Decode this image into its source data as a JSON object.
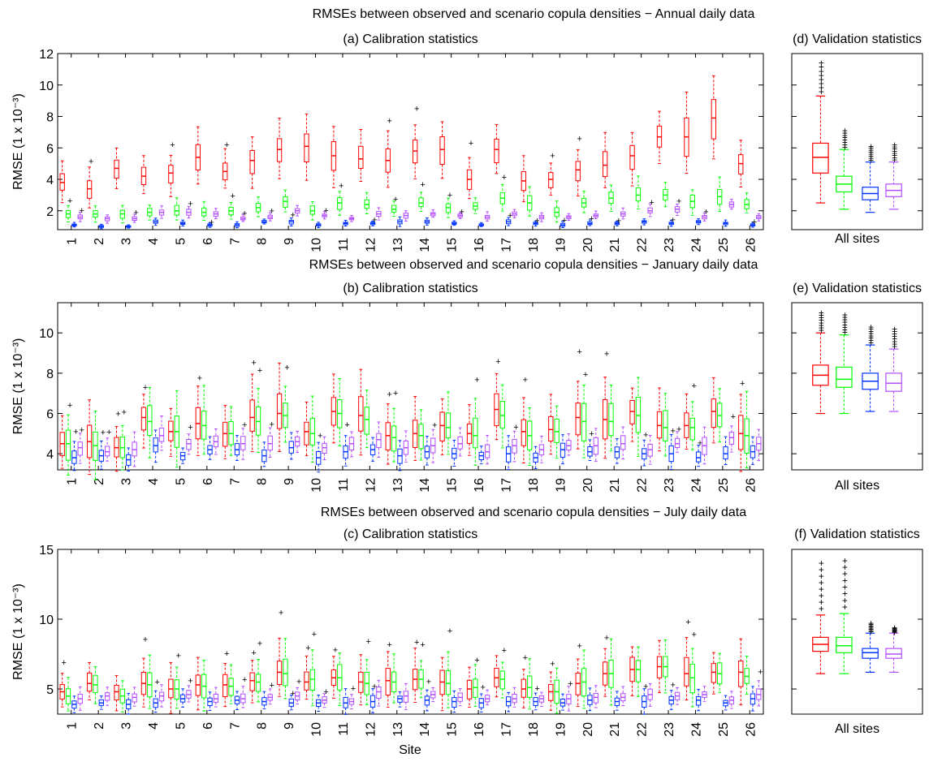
{
  "chart_data": {
    "type": "boxplot",
    "layout_title": "",
    "x_label": "Site",
    "series": [
      {
        "name": "",
        "color": "#ff0000"
      },
      {
        "name": "",
        "color": "#00ff00"
      },
      {
        "name": "",
        "color": "#0033ff"
      },
      {
        "name": "",
        "color": "#b44cff"
      }
    ],
    "outlier_color": "#a0a0a0",
    "sites": [
      "1",
      "2",
      "3",
      "4",
      "5",
      "6",
      "7",
      "8",
      "9",
      "10",
      "11",
      "12",
      "13",
      "14",
      "15",
      "16",
      "17",
      "18",
      "19",
      "20",
      "21",
      "22",
      "23",
      "24",
      "25",
      "26"
    ],
    "validation_category": "All sites",
    "panels": [
      {
        "title": "RMSEs between observed and scenario copula densities − Annual daily data",
        "calib_title": "(a) Calibration statistics",
        "valid_title": "(d) Validation statistics",
        "ylabel": "RMSE (1 x 10⁻³)",
        "ylim": [
          0.8,
          12
        ],
        "yticks": [
          2,
          4,
          6,
          8,
          10,
          12
        ],
        "medians": {
          "red": [
            3.8,
            3.4,
            4.7,
            4.2,
            4.4,
            5.4,
            4.5,
            5.2,
            5.9,
            6.1,
            5.5,
            5.3,
            5.2,
            5.8,
            5.9,
            4.0,
            5.9,
            3.9,
            4.0,
            4.6,
            4.9,
            5.5,
            6.7,
            6.7,
            7.9,
            5.0
          ],
          "green": [
            1.8,
            1.8,
            1.8,
            1.9,
            2.0,
            1.9,
            2.0,
            2.2,
            2.6,
            2.0,
            2.5,
            2.4,
            2.1,
            2.5,
            2.2,
            2.3,
            2.8,
            2.5,
            1.9,
            2.5,
            2.8,
            3.0,
            3.0,
            2.6,
            2.9,
            2.4
          ],
          "blue": [
            1.1,
            1.0,
            1.0,
            1.3,
            1.2,
            1.1,
            1.1,
            1.3,
            1.3,
            1.1,
            1.2,
            1.2,
            1.3,
            1.3,
            1.2,
            1.1,
            1.3,
            1.2,
            1.1,
            1.2,
            1.2,
            1.3,
            1.2,
            1.3,
            1.2,
            1.1
          ],
          "purple": [
            1.6,
            1.5,
            1.5,
            1.9,
            1.9,
            1.8,
            1.5,
            1.6,
            2.0,
            1.7,
            1.5,
            1.8,
            1.7,
            1.8,
            1.7,
            1.6,
            1.8,
            1.6,
            1.6,
            1.7,
            1.8,
            2.0,
            2.1,
            1.6,
            2.4,
            1.6
          ]
        },
        "validation": {
          "red": {
            "min": 2.5,
            "q1": 4.4,
            "median": 5.4,
            "q3": 6.3,
            "max": 9.3,
            "outliers_max": 11.4
          },
          "green": {
            "min": 2.1,
            "q1": 3.2,
            "median": 3.7,
            "q3": 4.2,
            "max": 5.9,
            "outliers_max": 7.1
          },
          "blue": {
            "min": 1.9,
            "q1": 2.7,
            "median": 3.1,
            "q3": 3.5,
            "max": 5.1,
            "outliers_max": 6.1
          },
          "purple": {
            "min": 2.1,
            "q1": 2.9,
            "median": 3.3,
            "q3": 3.7,
            "max": 5.1,
            "outliers_max": 6.2
          }
        }
      },
      {
        "title": "RMSEs between observed and scenario copula densities − January daily data",
        "calib_title": "(b) Calibration statistics",
        "valid_title": "(e) Validation statistics",
        "ylabel": "RMSE (1 x 10⁻³)",
        "ylim": [
          3.2,
          11.5
        ],
        "yticks": [
          4,
          6,
          8,
          10
        ],
        "medians": {
          "red": [
            4.5,
            4.6,
            4.3,
            5.8,
            5.1,
            5.5,
            5.0,
            5.8,
            6.0,
            5.1,
            6.1,
            5.9,
            4.9,
            5.0,
            5.4,
            5.0,
            6.2,
            5.1,
            5.2,
            5.8,
            5.7,
            6.1,
            5.4,
            5.4,
            6.1,
            5.0
          ],
          "green": [
            4.5,
            4.4,
            4.3,
            5.6,
            5.1,
            5.4,
            5.0,
            5.6,
            5.9,
            5.0,
            6.0,
            5.7,
            4.8,
            4.9,
            5.3,
            4.9,
            5.9,
            4.9,
            5.1,
            5.6,
            5.6,
            5.9,
            5.3,
            5.3,
            5.9,
            4.9
          ],
          "blue": [
            3.8,
            3.9,
            3.7,
            4.4,
            3.9,
            4.2,
            4.2,
            3.9,
            4.3,
            3.8,
            4.1,
            4.2,
            3.9,
            4.1,
            4.0,
            3.9,
            4.0,
            3.8,
            4.2,
            4.1,
            4.1,
            4.0,
            4.0,
            3.8,
            4.0,
            4.1
          ],
          "purple": [
            4.3,
            4.1,
            4.2,
            4.9,
            4.5,
            4.6,
            4.5,
            4.5,
            4.6,
            4.3,
            4.5,
            4.7,
            4.3,
            4.4,
            4.5,
            4.1,
            4.4,
            4.2,
            4.4,
            4.4,
            4.5,
            4.2,
            4.5,
            4.4,
            4.8,
            4.5
          ]
        },
        "validation": {
          "red": {
            "min": 6.0,
            "q1": 7.4,
            "median": 7.9,
            "q3": 8.4,
            "max": 10.0,
            "outliers_max": 11.0
          },
          "green": {
            "min": 6.0,
            "q1": 7.3,
            "median": 7.7,
            "q3": 8.3,
            "max": 9.9,
            "outliers_max": 10.9
          },
          "blue": {
            "min": 6.1,
            "q1": 7.2,
            "median": 7.6,
            "q3": 8.0,
            "max": 9.4,
            "outliers_max": 10.3
          },
          "purple": {
            "min": 6.1,
            "q1": 7.1,
            "median": 7.5,
            "q3": 8.0,
            "max": 9.2,
            "outliers_max": 10.2
          }
        }
      },
      {
        "title": "RMSEs between observed and scenario copula densities − July daily data",
        "calib_title": "(c) Calibration statistics",
        "valid_title": "(f) Validation statistics",
        "ylabel": "RMSE (1 x 10⁻³)",
        "ylim": [
          3.2,
          15
        ],
        "yticks": [
          5,
          10,
          15
        ],
        "medians": {
          "red": [
            4.8,
            5.4,
            4.8,
            5.4,
            5.0,
            5.3,
            5.3,
            5.6,
            6.2,
            5.5,
            5.8,
            5.5,
            5.6,
            5.7,
            5.5,
            5.0,
            5.8,
            5.0,
            4.8,
            5.4,
            6.1,
            6.4,
            6.6,
            6.1,
            6.2,
            6.2
          ],
          "green": [
            4.5,
            5.3,
            4.5,
            5.3,
            5.0,
            5.2,
            5.2,
            5.5,
            6.1,
            5.7,
            5.8,
            5.4,
            5.5,
            5.7,
            5.4,
            5.1,
            5.7,
            5.1,
            4.8,
            5.5,
            6.1,
            6.4,
            6.6,
            5.8,
            6.1,
            5.9
          ],
          "blue": [
            3.9,
            4.0,
            3.9,
            4.0,
            4.3,
            4.1,
            4.2,
            4.1,
            4.0,
            4.0,
            4.0,
            4.1,
            4.3,
            4.2,
            4.1,
            4.0,
            4.1,
            4.1,
            4.0,
            4.2,
            4.1,
            4.1,
            4.2,
            4.2,
            4.0,
            4.3
          ],
          "purple": [
            4.3,
            4.5,
            4.4,
            4.5,
            4.6,
            4.3,
            4.3,
            4.4,
            4.5,
            4.2,
            4.1,
            4.8,
            4.5,
            4.6,
            4.4,
            4.3,
            4.3,
            4.3,
            4.3,
            4.4,
            4.4,
            4.6,
            4.5,
            4.6,
            4.2,
            4.6
          ]
        },
        "validation": {
          "red": {
            "min": 6.1,
            "q1": 7.7,
            "median": 8.2,
            "q3": 8.7,
            "max": 10.3,
            "outliers_max": 14.0
          },
          "green": {
            "min": 6.1,
            "q1": 7.6,
            "median": 8.1,
            "q3": 8.7,
            "max": 10.4,
            "outliers_max": 14.2
          },
          "blue": {
            "min": 6.2,
            "q1": 7.2,
            "median": 7.6,
            "q3": 7.9,
            "max": 9.0,
            "outliers_max": 9.7
          },
          "purple": {
            "min": 6.2,
            "q1": 7.2,
            "median": 7.5,
            "q3": 7.9,
            "max": 9.0,
            "outliers_max": 9.4
          }
        }
      }
    ]
  }
}
